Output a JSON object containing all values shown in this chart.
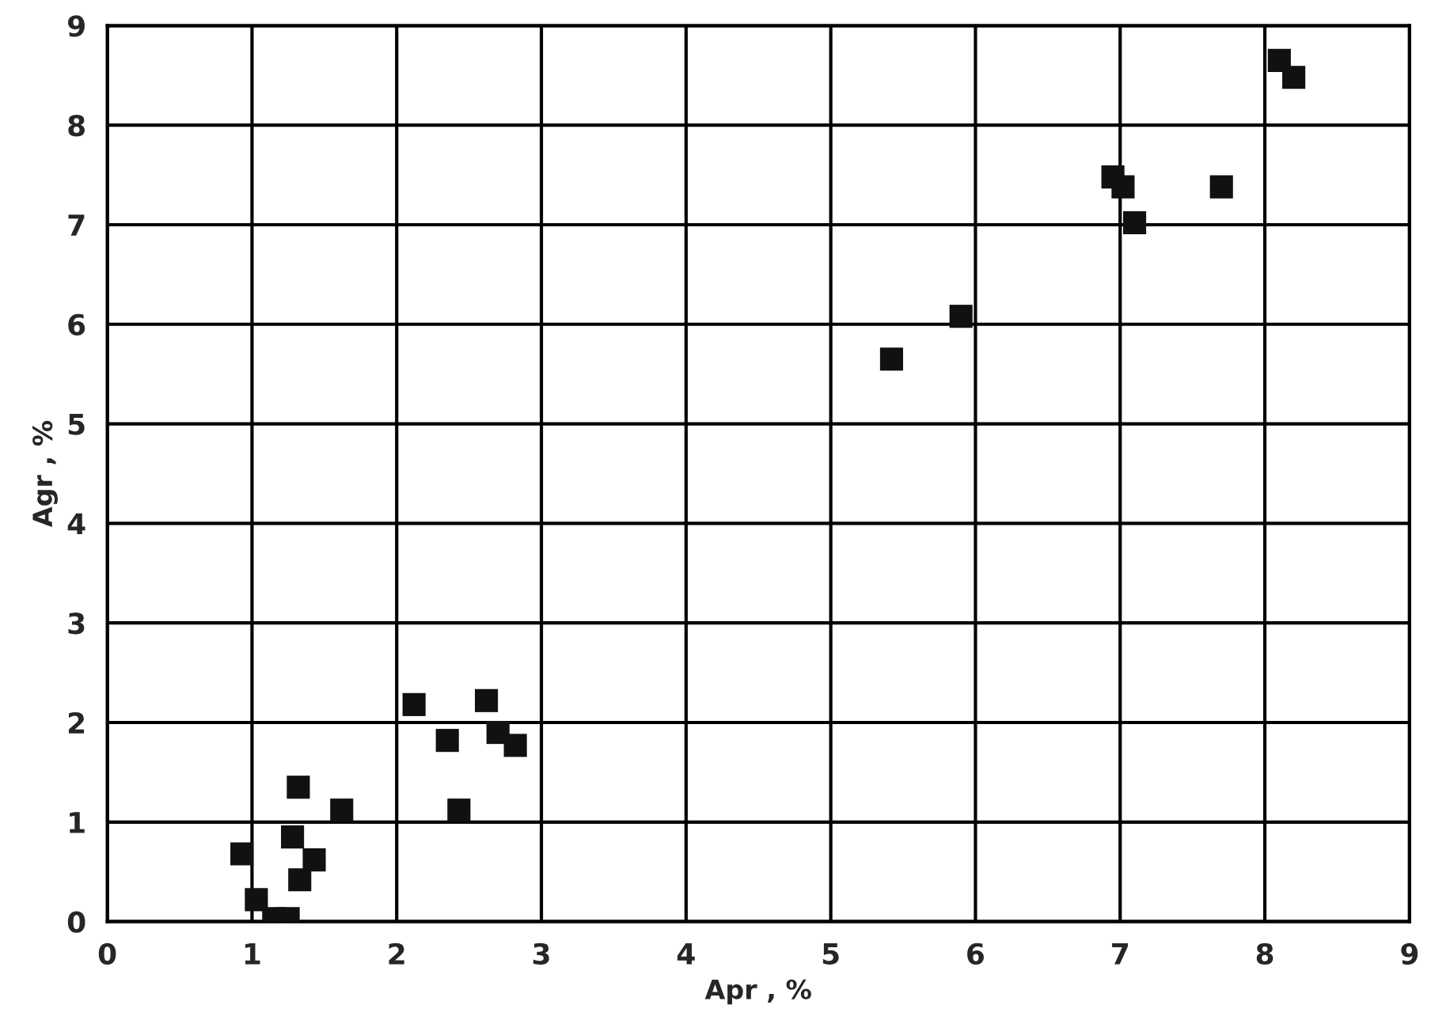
{
  "chart_data": {
    "type": "scatter",
    "xlabel": "Apr , %",
    "ylabel": "Agr , %",
    "x": [
      0.93,
      1.03,
      1.15,
      1.25,
      1.28,
      1.32,
      1.33,
      1.43,
      1.62,
      2.12,
      2.35,
      2.43,
      2.62,
      2.7,
      2.82,
      5.42,
      5.9,
      6.95,
      7.02,
      7.1,
      7.7,
      8.1,
      8.2
    ],
    "values": [
      0.68,
      0.22,
      0.03,
      0.03,
      0.85,
      1.35,
      0.42,
      0.62,
      1.12,
      2.18,
      1.82,
      1.12,
      2.22,
      1.9,
      1.77,
      5.65,
      6.08,
      7.48,
      7.38,
      7.02,
      7.38,
      8.65,
      8.48
    ],
    "color": "#111111",
    "marker": "square",
    "xlim": [
      0,
      9
    ],
    "ylim": [
      0,
      9
    ],
    "xticks": [
      0,
      1,
      2,
      3,
      4,
      5,
      6,
      7,
      8,
      9
    ],
    "yticks": [
      0,
      1,
      2,
      3,
      4,
      5,
      6,
      7,
      8,
      9
    ],
    "grid": true
  }
}
